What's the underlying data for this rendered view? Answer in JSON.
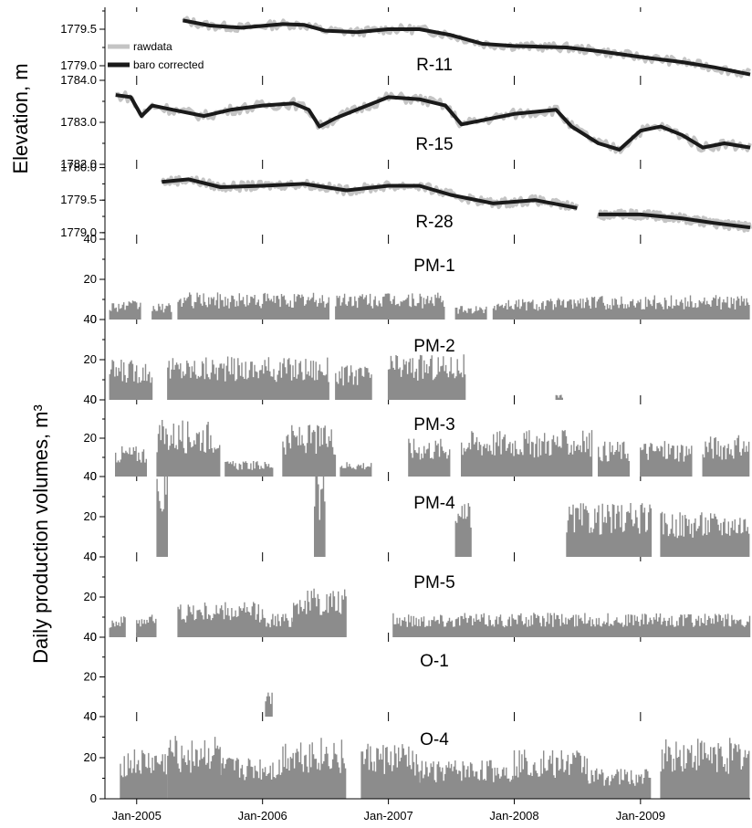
{
  "colors": {
    "raw": "#c4c4c4",
    "corrected": "#1a1a1a",
    "bars": "#8c8c8c",
    "axis": "#000000"
  },
  "elevation_ylabel": "Elevation, m",
  "production_ylabel": "Daily production volumes, m³",
  "legend": {
    "raw": "rawdata",
    "corrected": "baro corrected"
  },
  "x_ticks": [
    "Jan-2005",
    "Jan-2006",
    "Jan-2007",
    "Jan-2008",
    "Jan-2009"
  ],
  "chart_data": [
    {
      "type": "line",
      "panel": "R-11",
      "title": "R-11",
      "ylim": [
        1778.8,
        1779.8
      ],
      "yticks": [
        "1779.5",
        "1779.0"
      ],
      "ytick_values": [
        1779.5,
        1779.0
      ],
      "xlim": [
        "2004-10-01",
        "2009-11-15"
      ],
      "series": [
        {
          "name": "baro corrected",
          "points": [
            [
              "2005-05-15",
              1779.62
            ],
            [
              "2005-08-01",
              1779.55
            ],
            [
              "2005-11-01",
              1779.52
            ],
            [
              "2006-03-01",
              1779.57
            ],
            [
              "2006-05-01",
              1779.56
            ],
            [
              "2006-07-01",
              1779.48
            ],
            [
              "2006-10-01",
              1779.46
            ],
            [
              "2007-01-01",
              1779.5
            ],
            [
              "2007-04-01",
              1779.5
            ],
            [
              "2007-07-01",
              1779.42
            ],
            [
              "2007-10-01",
              1779.3
            ],
            [
              "2008-01-01",
              1779.27
            ],
            [
              "2008-06-01",
              1779.25
            ],
            [
              "2008-09-01",
              1779.2
            ],
            [
              "2009-01-01",
              1779.12
            ],
            [
              "2009-05-01",
              1779.05
            ],
            [
              "2009-08-01",
              1778.98
            ],
            [
              "2009-11-15",
              1778.88
            ]
          ]
        }
      ]
    },
    {
      "type": "line",
      "panel": "R-15",
      "title": "R-15",
      "ylim": [
        1782.0,
        1784.0
      ],
      "yticks": [
        "1784.0",
        "1783.0",
        "1782.0"
      ],
      "ytick_values": [
        1784.0,
        1783.0,
        1782.0
      ],
      "xlim": [
        "2004-10-01",
        "2009-11-15"
      ],
      "series": [
        {
          "name": "baro corrected",
          "points": [
            [
              "2004-11-01",
              1783.65
            ],
            [
              "2004-12-15",
              1783.6
            ],
            [
              "2005-01-15",
              1783.15
            ],
            [
              "2005-02-15",
              1783.4
            ],
            [
              "2005-04-15",
              1783.3
            ],
            [
              "2005-07-15",
              1783.15
            ],
            [
              "2005-10-01",
              1783.3
            ],
            [
              "2006-01-01",
              1783.4
            ],
            [
              "2006-04-01",
              1783.45
            ],
            [
              "2006-05-15",
              1783.3
            ],
            [
              "2006-06-15",
              1782.9
            ],
            [
              "2006-08-01",
              1783.1
            ],
            [
              "2006-10-01",
              1783.3
            ],
            [
              "2007-01-01",
              1783.6
            ],
            [
              "2007-04-01",
              1783.55
            ],
            [
              "2007-06-15",
              1783.4
            ],
            [
              "2007-08-01",
              1782.95
            ],
            [
              "2007-10-01",
              1783.05
            ],
            [
              "2008-01-01",
              1783.2
            ],
            [
              "2008-05-01",
              1783.3
            ],
            [
              "2008-06-15",
              1782.9
            ],
            [
              "2008-09-01",
              1782.5
            ],
            [
              "2008-11-01",
              1782.35
            ],
            [
              "2009-01-01",
              1782.8
            ],
            [
              "2009-03-01",
              1782.9
            ],
            [
              "2009-05-01",
              1782.7
            ],
            [
              "2009-07-01",
              1782.4
            ],
            [
              "2009-09-01",
              1782.5
            ],
            [
              "2009-11-15",
              1782.4
            ]
          ]
        }
      ]
    },
    {
      "type": "line",
      "panel": "R-28",
      "title": "R-28",
      "ylim": [
        1778.9,
        1780.05
      ],
      "yticks": [
        "1780.0",
        "1779.5",
        "1779.0"
      ],
      "ytick_values": [
        1780.0,
        1779.5,
        1779.0
      ],
      "xlim": [
        "2004-10-01",
        "2009-11-15"
      ],
      "series": [
        {
          "name": "baro corrected",
          "points": [
            [
              "2005-03-15",
              1779.78
            ],
            [
              "2005-06-01",
              1779.82
            ],
            [
              "2005-09-01",
              1779.7
            ],
            [
              "2006-01-01",
              1779.72
            ],
            [
              "2006-05-01",
              1779.75
            ],
            [
              "2006-09-01",
              1779.65
            ],
            [
              "2007-01-01",
              1779.72
            ],
            [
              "2007-04-01",
              1779.72
            ],
            [
              "2007-07-01",
              1779.58
            ],
            [
              "2007-11-01",
              1779.45
            ],
            [
              "2008-03-01",
              1779.5
            ],
            [
              "2008-07-01",
              1779.38
            ]
          ]
        },
        {
          "name": "baro corrected (continued)",
          "points": [
            [
              "2008-09-01",
              1779.28
            ],
            [
              "2009-01-01",
              1779.28
            ],
            [
              "2009-05-01",
              1779.22
            ],
            [
              "2009-08-01",
              1779.15
            ],
            [
              "2009-11-15",
              1779.08
            ]
          ]
        }
      ]
    },
    {
      "type": "bar",
      "panel": "PM-1",
      "title": "PM-1",
      "ylim": [
        0,
        40
      ],
      "yticks": [
        "40",
        "20",
        "0"
      ],
      "ytick_values": [
        40,
        20,
        0
      ],
      "xlim": [
        "2004-10-01",
        "2009-11-15"
      ],
      "segments": [
        [
          "2004-10-15",
          "2005-01-15",
          7
        ],
        [
          "2005-02-15",
          "2005-04-15",
          6
        ],
        [
          "2005-05-01",
          "2006-07-15",
          10
        ],
        [
          "2006-08-01",
          "2007-06-15",
          10
        ],
        [
          "2007-07-15",
          "2007-10-15",
          5
        ],
        [
          "2007-11-01",
          "2008-06-15",
          8
        ],
        [
          "2008-06-15",
          "2009-11-15",
          9
        ]
      ]
    },
    {
      "type": "bar",
      "panel": "PM-2",
      "title": "PM-2",
      "ylim": [
        0,
        40
      ],
      "yticks": [
        "40",
        "20",
        "0"
      ],
      "ytick_values": [
        40,
        20,
        0
      ],
      "xlim": [
        "2004-10-01",
        "2009-11-15"
      ],
      "segments": [
        [
          "2004-10-15",
          "2005-02-15",
          15
        ],
        [
          "2005-04-01",
          "2006-07-15",
          16
        ],
        [
          "2006-08-01",
          "2006-11-15",
          13
        ],
        [
          "2007-01-01",
          "2007-08-15",
          17
        ],
        [
          "2008-05-01",
          "2008-05-20",
          2
        ]
      ]
    },
    {
      "type": "bar",
      "panel": "PM-3",
      "title": "PM-3",
      "ylim": [
        0,
        40
      ],
      "yticks": [
        "40",
        "20",
        "0"
      ],
      "ytick_values": [
        40,
        20,
        0
      ],
      "xlim": [
        "2004-10-01",
        "2009-11-15"
      ],
      "segments": [
        [
          "2004-11-01",
          "2005-02-01",
          12
        ],
        [
          "2005-03-01",
          "2005-09-01",
          22
        ],
        [
          "2005-09-15",
          "2006-02-01",
          6
        ],
        [
          "2006-03-01",
          "2006-08-01",
          20
        ],
        [
          "2006-08-15",
          "2006-11-15",
          6
        ],
        [
          "2007-03-01",
          "2007-07-01",
          15
        ],
        [
          "2007-08-01",
          "2008-08-15",
          18
        ],
        [
          "2008-09-01",
          "2008-12-01",
          14
        ],
        [
          "2009-01-01",
          "2009-06-01",
          14
        ],
        [
          "2009-07-01",
          "2009-11-15",
          16
        ]
      ]
    },
    {
      "type": "bar",
      "panel": "PM-4",
      "title": "PM-4",
      "ylim": [
        0,
        40
      ],
      "yticks": [
        "40",
        "20",
        "0"
      ],
      "ytick_values": [
        40,
        20,
        0
      ],
      "xlim": [
        "2004-10-01",
        "2009-11-15"
      ],
      "segments": [
        [
          "2005-03-01",
          "2005-04-01",
          32
        ],
        [
          "2006-06-01",
          "2006-07-01",
          33
        ],
        [
          "2007-07-15",
          "2007-09-01",
          20
        ],
        [
          "2008-06-01",
          "2009-02-01",
          20
        ],
        [
          "2009-03-01",
          "2009-11-15",
          17
        ]
      ]
    },
    {
      "type": "bar",
      "panel": "PM-5",
      "title": "PM-5",
      "ylim": [
        0,
        40
      ],
      "yticks": [
        "40",
        "20",
        "0"
      ],
      "ytick_values": [
        40,
        20,
        0
      ],
      "xlim": [
        "2004-10-01",
        "2009-11-15"
      ],
      "segments": [
        [
          "2004-10-15",
          "2004-12-01",
          8
        ],
        [
          "2005-01-01",
          "2005-03-01",
          9
        ],
        [
          "2005-05-01",
          "2006-01-01",
          13
        ],
        [
          "2006-01-01",
          "2006-04-01",
          9
        ],
        [
          "2006-04-01",
          "2006-09-01",
          18
        ],
        [
          "2007-01-15",
          "2009-11-15",
          9
        ]
      ]
    },
    {
      "type": "bar",
      "panel": "O-1",
      "title": "O-1",
      "ylim": [
        0,
        40
      ],
      "yticks": [
        "40",
        "20",
        "0"
      ],
      "ytick_values": [
        40,
        20,
        0
      ],
      "xlim": [
        "2004-10-01",
        "2009-11-15"
      ],
      "segments": [
        [
          "2006-01-10",
          "2006-01-30",
          10
        ]
      ]
    },
    {
      "type": "bar",
      "panel": "O-4",
      "title": "O-4",
      "ylim": [
        0,
        40
      ],
      "yticks": [
        "40",
        "20",
        "0"
      ],
      "ytick_values": [
        40,
        20,
        0
      ],
      "xlim": [
        "2004-10-01",
        "2009-11-15"
      ],
      "segments": [
        [
          "2004-11-15",
          "2005-04-01",
          18
        ],
        [
          "2005-04-01",
          "2005-09-01",
          23
        ],
        [
          "2005-09-01",
          "2006-03-01",
          15
        ],
        [
          "2006-03-01",
          "2006-09-01",
          22
        ],
        [
          "2006-10-15",
          "2007-04-01",
          20
        ],
        [
          "2007-04-01",
          "2008-01-01",
          14
        ],
        [
          "2008-01-01",
          "2008-08-01",
          18
        ],
        [
          "2008-08-01",
          "2009-02-01",
          11
        ],
        [
          "2009-03-01",
          "2009-11-15",
          22
        ]
      ]
    }
  ]
}
